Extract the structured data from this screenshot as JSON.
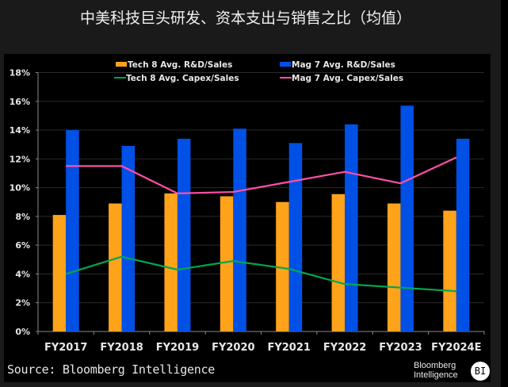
{
  "title": "中美科技巨头研发、资本支出与销售之比（均值）",
  "source": "Source: Bloomberg Intelligence",
  "brand": {
    "line1": "Bloomberg",
    "line2": "Intelligence",
    "badge": "BI"
  },
  "colors": {
    "tech8_rd": "#ffa31a",
    "mag7_rd": "#0050e6",
    "tech8_capex": "#00a651",
    "mag7_capex": "#ff4fa8",
    "grid": "#2a2a2a",
    "axis": "#888888",
    "text": "#e8e8e8"
  },
  "chart_data": {
    "type": "bar",
    "title": "中美科技巨头研发、资本支出与销售之比（均值）",
    "categories": [
      "FY2017",
      "FY2018",
      "FY2019",
      "FY2020",
      "FY2021",
      "FY2022",
      "FY2023",
      "FY2024E"
    ],
    "ylim": [
      0,
      18
    ],
    "yticks": [
      "0%",
      "2%",
      "4%",
      "6%",
      "8%",
      "10%",
      "12%",
      "14%",
      "16%",
      "18%"
    ],
    "ytick_values": [
      0,
      2,
      4,
      6,
      8,
      10,
      12,
      14,
      16,
      18
    ],
    "grid": true,
    "legend_position": "top",
    "series": [
      {
        "name": "Tech 8 Avg. R&D/Sales",
        "kind": "bar",
        "color_key": "tech8_rd",
        "values": [
          8.1,
          8.9,
          9.6,
          9.4,
          9.0,
          9.55,
          8.9,
          8.4
        ]
      },
      {
        "name": "Mag 7 Avg. R&D/Sales",
        "kind": "bar",
        "color_key": "mag7_rd",
        "values": [
          14.0,
          12.9,
          13.4,
          14.1,
          13.1,
          14.4,
          15.7,
          13.4
        ]
      },
      {
        "name": "Tech 8 Avg. Capex/Sales",
        "kind": "line",
        "color_key": "tech8_capex",
        "values": [
          4.0,
          5.2,
          4.3,
          4.9,
          4.35,
          3.3,
          3.05,
          2.8
        ]
      },
      {
        "name": "Mag 7 Avg. Capex/Sales",
        "kind": "line",
        "color_key": "mag7_capex",
        "values": [
          11.5,
          11.5,
          9.6,
          9.7,
          10.4,
          11.1,
          10.3,
          12.1
        ]
      }
    ]
  }
}
